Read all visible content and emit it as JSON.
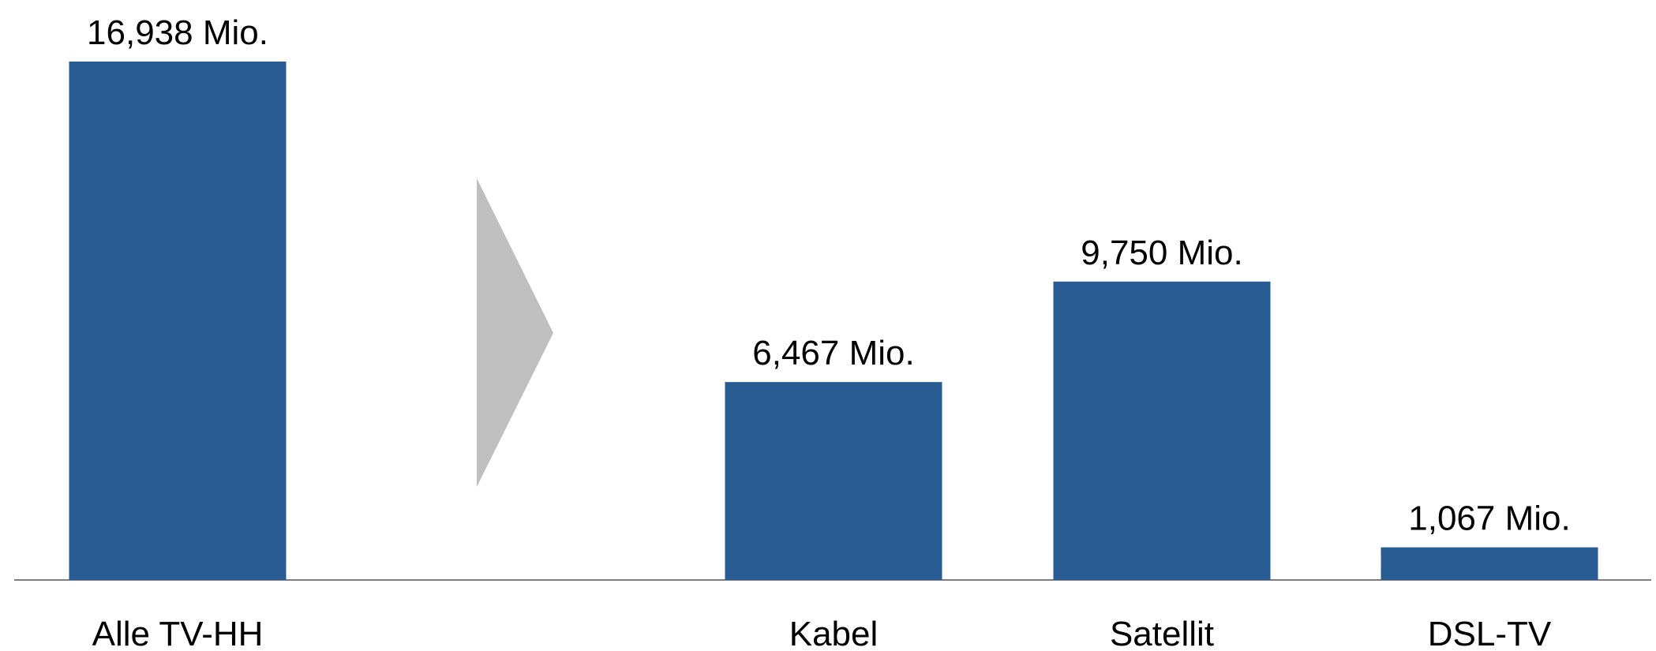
{
  "chart_data": {
    "type": "bar",
    "title": "",
    "xlabel": "",
    "ylabel": "",
    "ylim": [
      0,
      16.938
    ],
    "grid": false,
    "legend": "none",
    "categories": [
      "Alle TV-HH",
      "",
      "Kabel",
      "Satellit",
      "DSL-TV"
    ],
    "values": [
      16.938,
      null,
      6.467,
      9.75,
      1.067
    ],
    "value_labels": [
      "16,938 Mio.",
      "",
      "6,467 Mio.",
      "9,750 Mio.",
      "1,067 Mio."
    ],
    "unit": "Mio."
  },
  "colors": {
    "bar": "#2a5c94",
    "arrow": "#bfbfbf",
    "axis": "#7f7f7f"
  },
  "icons": {
    "separator": "chevron-right-triangle"
  }
}
